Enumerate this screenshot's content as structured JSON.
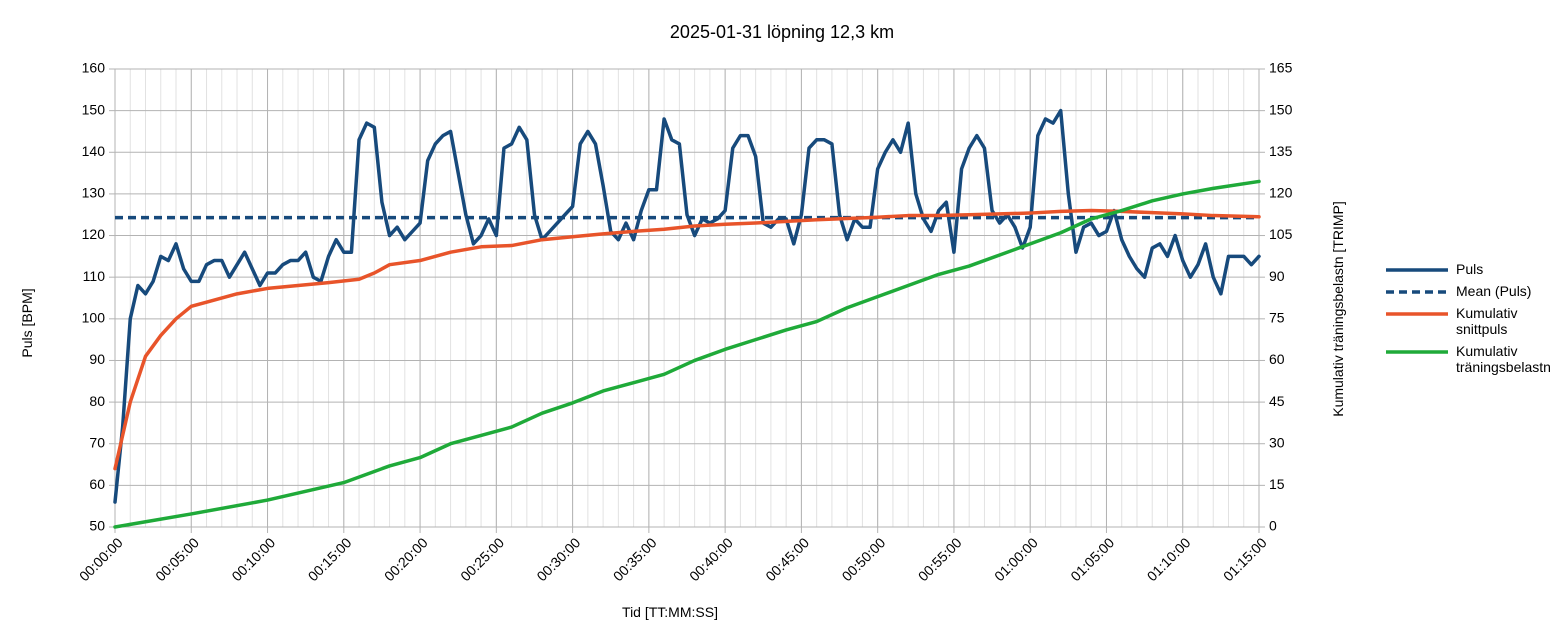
{
  "chart_data": {
    "type": "line",
    "title": "2025-01-31 löpning 12,3 km",
    "x_label": "Tid [TT:MM:SS]",
    "y_label": "Puls [BPM]",
    "y2_label": "Kumulativ träningsbelastn [TRIMP]",
    "xlim": [
      0,
      4500
    ],
    "xticks": [
      {
        "value": 0,
        "label": "00:00:00"
      },
      {
        "value": 300,
        "label": "00:05:00"
      },
      {
        "value": 600,
        "label": "00:10:00"
      },
      {
        "value": 900,
        "label": "00:15:00"
      },
      {
        "value": 1200,
        "label": "00:20:00"
      },
      {
        "value": 1500,
        "label": "00:25:00"
      },
      {
        "value": 1800,
        "label": "00:30:00"
      },
      {
        "value": 2100,
        "label": "00:35:00"
      },
      {
        "value": 2400,
        "label": "00:40:00"
      },
      {
        "value": 2700,
        "label": "00:45:00"
      },
      {
        "value": 3000,
        "label": "00:50:00"
      },
      {
        "value": 3300,
        "label": "00:55:00"
      },
      {
        "value": 3600,
        "label": "01:00:00"
      },
      {
        "value": 3900,
        "label": "01:05:00"
      },
      {
        "value": 4200,
        "label": "01:10:00"
      },
      {
        "value": 4500,
        "label": "01:15:00"
      }
    ],
    "xminorticks": [
      0,
      60,
      120,
      180,
      240,
      300,
      360,
      420,
      480,
      540,
      600,
      660,
      720,
      780,
      840,
      900,
      960,
      1020,
      1080,
      1140,
      1200,
      1260,
      1320,
      1380,
      1440,
      1500,
      1560,
      1620,
      1680,
      1740,
      1800,
      1860,
      1920,
      1980,
      2040,
      2100,
      2160,
      2220,
      2280,
      2340,
      2400,
      2460,
      2520,
      2580,
      2640,
      2700,
      2760,
      2820,
      2880,
      2940,
      3000,
      3060,
      3120,
      3180,
      3240,
      3300,
      3360,
      3420,
      3480,
      3540,
      3600,
      3660,
      3720,
      3780,
      3840,
      3900,
      3960,
      4020,
      4080,
      4140,
      4200,
      4260,
      4320,
      4380,
      4440,
      4500
    ],
    "ylim": [
      50,
      160
    ],
    "yticks": [
      50,
      60,
      70,
      80,
      90,
      100,
      110,
      120,
      130,
      140,
      150,
      160
    ],
    "y2lim": [
      0,
      165
    ],
    "y2ticks": [
      0,
      15,
      30,
      45,
      60,
      75,
      90,
      105,
      120,
      135,
      150,
      165
    ],
    "grid": true,
    "legend": "right",
    "series": [
      {
        "name": "Puls",
        "color": "#174a7c",
        "x": [
          0,
          30,
          60,
          90,
          120,
          150,
          180,
          210,
          240,
          270,
          300,
          330,
          360,
          390,
          420,
          450,
          480,
          510,
          540,
          570,
          600,
          630,
          660,
          690,
          720,
          750,
          780,
          810,
          840,
          870,
          900,
          930,
          960,
          990,
          1020,
          1050,
          1080,
          1110,
          1140,
          1170,
          1200,
          1230,
          1260,
          1290,
          1320,
          1350,
          1380,
          1410,
          1440,
          1470,
          1500,
          1530,
          1560,
          1590,
          1620,
          1650,
          1680,
          1710,
          1740,
          1770,
          1800,
          1830,
          1860,
          1890,
          1920,
          1950,
          1980,
          2010,
          2040,
          2070,
          2100,
          2130,
          2160,
          2190,
          2220,
          2250,
          2280,
          2310,
          2340,
          2370,
          2400,
          2430,
          2460,
          2490,
          2520,
          2550,
          2580,
          2610,
          2640,
          2670,
          2700,
          2730,
          2760,
          2790,
          2820,
          2850,
          2880,
          2910,
          2940,
          2970,
          3000,
          3030,
          3060,
          3090,
          3120,
          3150,
          3180,
          3210,
          3240,
          3270,
          3300,
          3330,
          3360,
          3390,
          3420,
          3450,
          3480,
          3510,
          3540,
          3570,
          3600,
          3630,
          3660,
          3690,
          3720,
          3750,
          3780,
          3810,
          3840,
          3870,
          3900,
          3930,
          3960,
          3990,
          4020,
          4050,
          4080,
          4110,
          4140,
          4170,
          4200,
          4230,
          4260,
          4290,
          4320,
          4350,
          4380,
          4410,
          4440,
          4470,
          4500
        ],
        "values": [
          56,
          74,
          100,
          108,
          106,
          109,
          115,
          114,
          118,
          112,
          109,
          109,
          113,
          114,
          114,
          110,
          113,
          116,
          112,
          108,
          111,
          111,
          113,
          114,
          114,
          116,
          110,
          109,
          115,
          119,
          116,
          116,
          143,
          147,
          146,
          128,
          120,
          122,
          119,
          121,
          123,
          138,
          142,
          144,
          145,
          135,
          125,
          118,
          120,
          124,
          120,
          141,
          142,
          146,
          143,
          125,
          119,
          121,
          123,
          125,
          127,
          142,
          145,
          142,
          132,
          121,
          119,
          123,
          119,
          126,
          131,
          131,
          148,
          143,
          142,
          125,
          120,
          124,
          123,
          124,
          126,
          141,
          144,
          144,
          139,
          123,
          122,
          124,
          124,
          118,
          125,
          141,
          143,
          143,
          142,
          125,
          119,
          124,
          122,
          122,
          136,
          140,
          143,
          140,
          147,
          130,
          124,
          121,
          126,
          128,
          116,
          136,
          141,
          144,
          141,
          126,
          123,
          125,
          122,
          117,
          122,
          144,
          148,
          147,
          150,
          130,
          116,
          122,
          123,
          120,
          121,
          126,
          119,
          115,
          112,
          110,
          117,
          118,
          115,
          120,
          114,
          110,
          113,
          118,
          110,
          106,
          115,
          115,
          115,
          113,
          115
        ]
      },
      {
        "name": "Mean (Puls)",
        "color": "#174a7c",
        "dashed": true,
        "x": [
          0,
          4500
        ],
        "values": [
          124.3,
          124.3
        ]
      },
      {
        "name": "Kumulativ snittpuls",
        "color": "#e8542a",
        "x": [
          0,
          60,
          120,
          180,
          240,
          300,
          360,
          480,
          600,
          720,
          840,
          960,
          1020,
          1080,
          1200,
          1320,
          1440,
          1560,
          1680,
          1800,
          1920,
          2040,
          2160,
          2280,
          2400,
          2520,
          2640,
          2760,
          2880,
          3000,
          3120,
          3240,
          3360,
          3480,
          3600,
          3720,
          3840,
          3960,
          4080,
          4200,
          4320,
          4500
        ],
        "values": [
          64,
          80,
          91,
          96,
          100,
          103,
          104,
          106,
          107.3,
          108,
          108.7,
          109.5,
          111,
          113,
          114,
          116,
          117.3,
          117.6,
          119,
          119.7,
          120.4,
          121,
          121.5,
          122.3,
          122.7,
          123,
          123.4,
          123.8,
          124.1,
          124.4,
          124.8,
          124.8,
          125,
          125.2,
          125.4,
          125.8,
          126,
          125.8,
          125.5,
          125.2,
          124.8,
          124.5
        ]
      },
      {
        "name": "Kumulativ träningsbelastn",
        "color": "#1faa39",
        "axis": "y2",
        "x": [
          0,
          300,
          600,
          900,
          1020,
          1080,
          1200,
          1320,
          1440,
          1560,
          1680,
          1800,
          1920,
          2040,
          2160,
          2280,
          2400,
          2520,
          2640,
          2760,
          2880,
          3000,
          3120,
          3240,
          3360,
          3480,
          3600,
          3720,
          3840,
          3960,
          4080,
          4200,
          4320,
          4500
        ],
        "values": [
          0,
          4.7,
          9.7,
          16,
          20,
          22,
          25,
          30,
          33,
          36,
          41,
          44.7,
          49,
          52,
          55,
          60,
          64,
          67.5,
          71,
          74,
          79,
          83,
          87,
          91,
          94,
          98,
          102,
          106,
          111,
          114,
          117.5,
          120,
          122,
          124.5
        ]
      }
    ]
  }
}
